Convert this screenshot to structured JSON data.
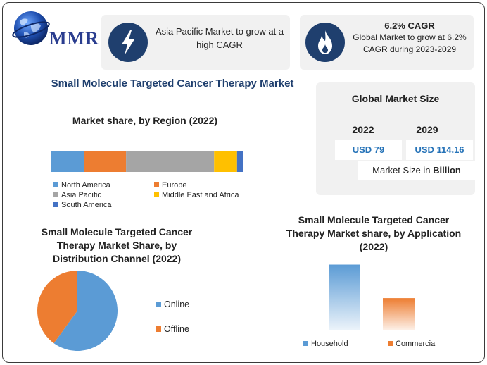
{
  "logo": {
    "text": "MMR"
  },
  "card_growth": {
    "text": "Asia Pacific Market to grow at a high CAGR",
    "icon": "lightning-bolt-icon"
  },
  "card_cagr": {
    "title": "6.2% CAGR",
    "text": "Global Market to grow at 6.2% CAGR during 2023-2029",
    "icon": "flame-icon"
  },
  "main_title": "Small Molecule Targeted Cancer Therapy Market",
  "global_market": {
    "title": "Global Market Size",
    "year_start": "2022",
    "year_end": "2029",
    "value_start": "USD 79",
    "value_end": "USD 114.16",
    "unit_prefix": "Market Size in ",
    "unit_bold": "Billion"
  },
  "colors": {
    "accent_navy": "#1f3f6e",
    "value_blue": "#2673b8",
    "north_america": "#5b9bd5",
    "europe": "#ed7d31",
    "asia_pacific": "#a5a5a5",
    "middle_east_africa": "#ffc000",
    "south_america": "#4472c4"
  },
  "chart_data": [
    {
      "type": "bar",
      "orientation": "horizontal-stacked",
      "title": "Market share, by Region (2022)",
      "categories": [
        "North America",
        "Europe",
        "Asia Pacific",
        "Middle East and Africa",
        "South America"
      ],
      "values": [
        17,
        22,
        46,
        12,
        3
      ],
      "unit": "%",
      "legend": "bottom",
      "series": [
        {
          "name": "North America",
          "value": 17,
          "color": "#5b9bd5"
        },
        {
          "name": "Europe",
          "value": 22,
          "color": "#ed7d31"
        },
        {
          "name": "Asia Pacific",
          "value": 46,
          "color": "#a5a5a5"
        },
        {
          "name": "Middle East and Africa",
          "value": 12,
          "color": "#ffc000"
        },
        {
          "name": "South America",
          "value": 3,
          "color": "#4472c4"
        }
      ]
    },
    {
      "type": "pie",
      "title": "Small Molecule Targeted Cancer Therapy Market Share, by Distribution Channel (2022)",
      "legend": "right",
      "slices": [
        {
          "name": "Online",
          "value": 60,
          "color": "#5b9bd5"
        },
        {
          "name": "Offline",
          "value": 40,
          "color": "#ed7d31"
        }
      ]
    },
    {
      "type": "bar",
      "title": "Small Molecule Targeted Cancer Therapy Market share, by Application (2022)",
      "categories": [
        "Household",
        "Commercial"
      ],
      "values": [
        68,
        33
      ],
      "colors": [
        "#5b9bd5",
        "#ed7d31"
      ],
      "ylim": [
        0,
        75
      ],
      "legend": "bottom",
      "grid": false
    }
  ]
}
